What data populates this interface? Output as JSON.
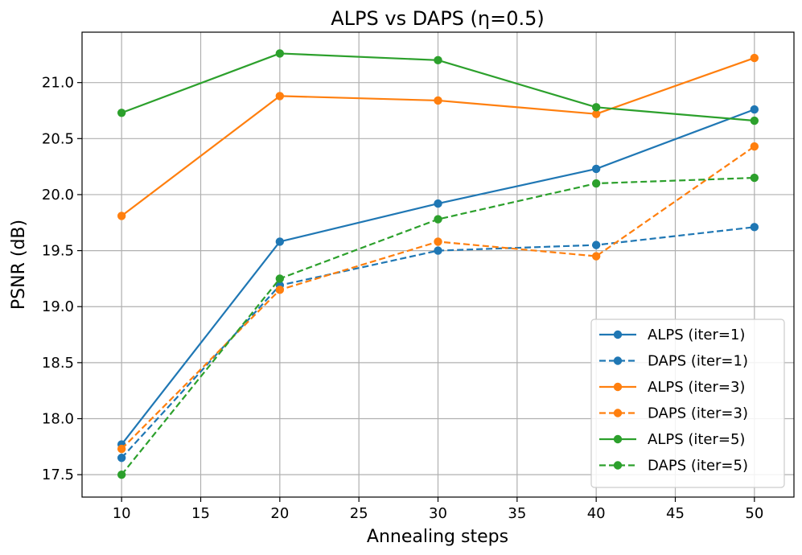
{
  "chart_data": {
    "type": "line",
    "title": "ALPS vs DAPS (η=0.5)",
    "xlabel": "Annealing steps",
    "ylabel": "PSNR (dB)",
    "x": [
      10,
      20,
      30,
      40,
      50
    ],
    "xlim": [
      7.5,
      52.5
    ],
    "ylim": [
      17.3,
      21.45
    ],
    "xticks": [
      10,
      15,
      20,
      25,
      30,
      35,
      40,
      45,
      50
    ],
    "xtick_labels": [
      "10",
      "15",
      "20",
      "25",
      "30",
      "35",
      "40",
      "45",
      "50"
    ],
    "yticks": [
      17.5,
      18.0,
      18.5,
      19.0,
      19.5,
      20.0,
      20.5,
      21.0
    ],
    "ytick_labels": [
      "17.5",
      "18.0",
      "18.5",
      "19.0",
      "19.5",
      "20.0",
      "20.5",
      "21.0"
    ],
    "grid": true,
    "legend_position": "lower-right",
    "series": [
      {
        "name": "ALPS (iter=1)",
        "color": "#1f77b4",
        "dashed": false,
        "values": [
          17.77,
          19.58,
          19.92,
          20.23,
          20.76
        ]
      },
      {
        "name": "DAPS (iter=1)",
        "color": "#1f77b4",
        "dashed": true,
        "values": [
          17.65,
          19.19,
          19.5,
          19.55,
          19.71
        ]
      },
      {
        "name": "ALPS (iter=3)",
        "color": "#ff7f0e",
        "dashed": false,
        "values": [
          19.81,
          20.88,
          20.84,
          20.72,
          21.22
        ]
      },
      {
        "name": "DAPS (iter=3)",
        "color": "#ff7f0e",
        "dashed": true,
        "values": [
          17.73,
          19.15,
          19.58,
          19.45,
          20.43
        ]
      },
      {
        "name": "ALPS (iter=5)",
        "color": "#2ca02c",
        "dashed": false,
        "values": [
          20.73,
          21.26,
          21.2,
          20.78,
          20.66
        ]
      },
      {
        "name": "DAPS (iter=5)",
        "color": "#2ca02c",
        "dashed": true,
        "values": [
          17.5,
          19.25,
          19.78,
          20.1,
          20.15
        ]
      }
    ]
  }
}
